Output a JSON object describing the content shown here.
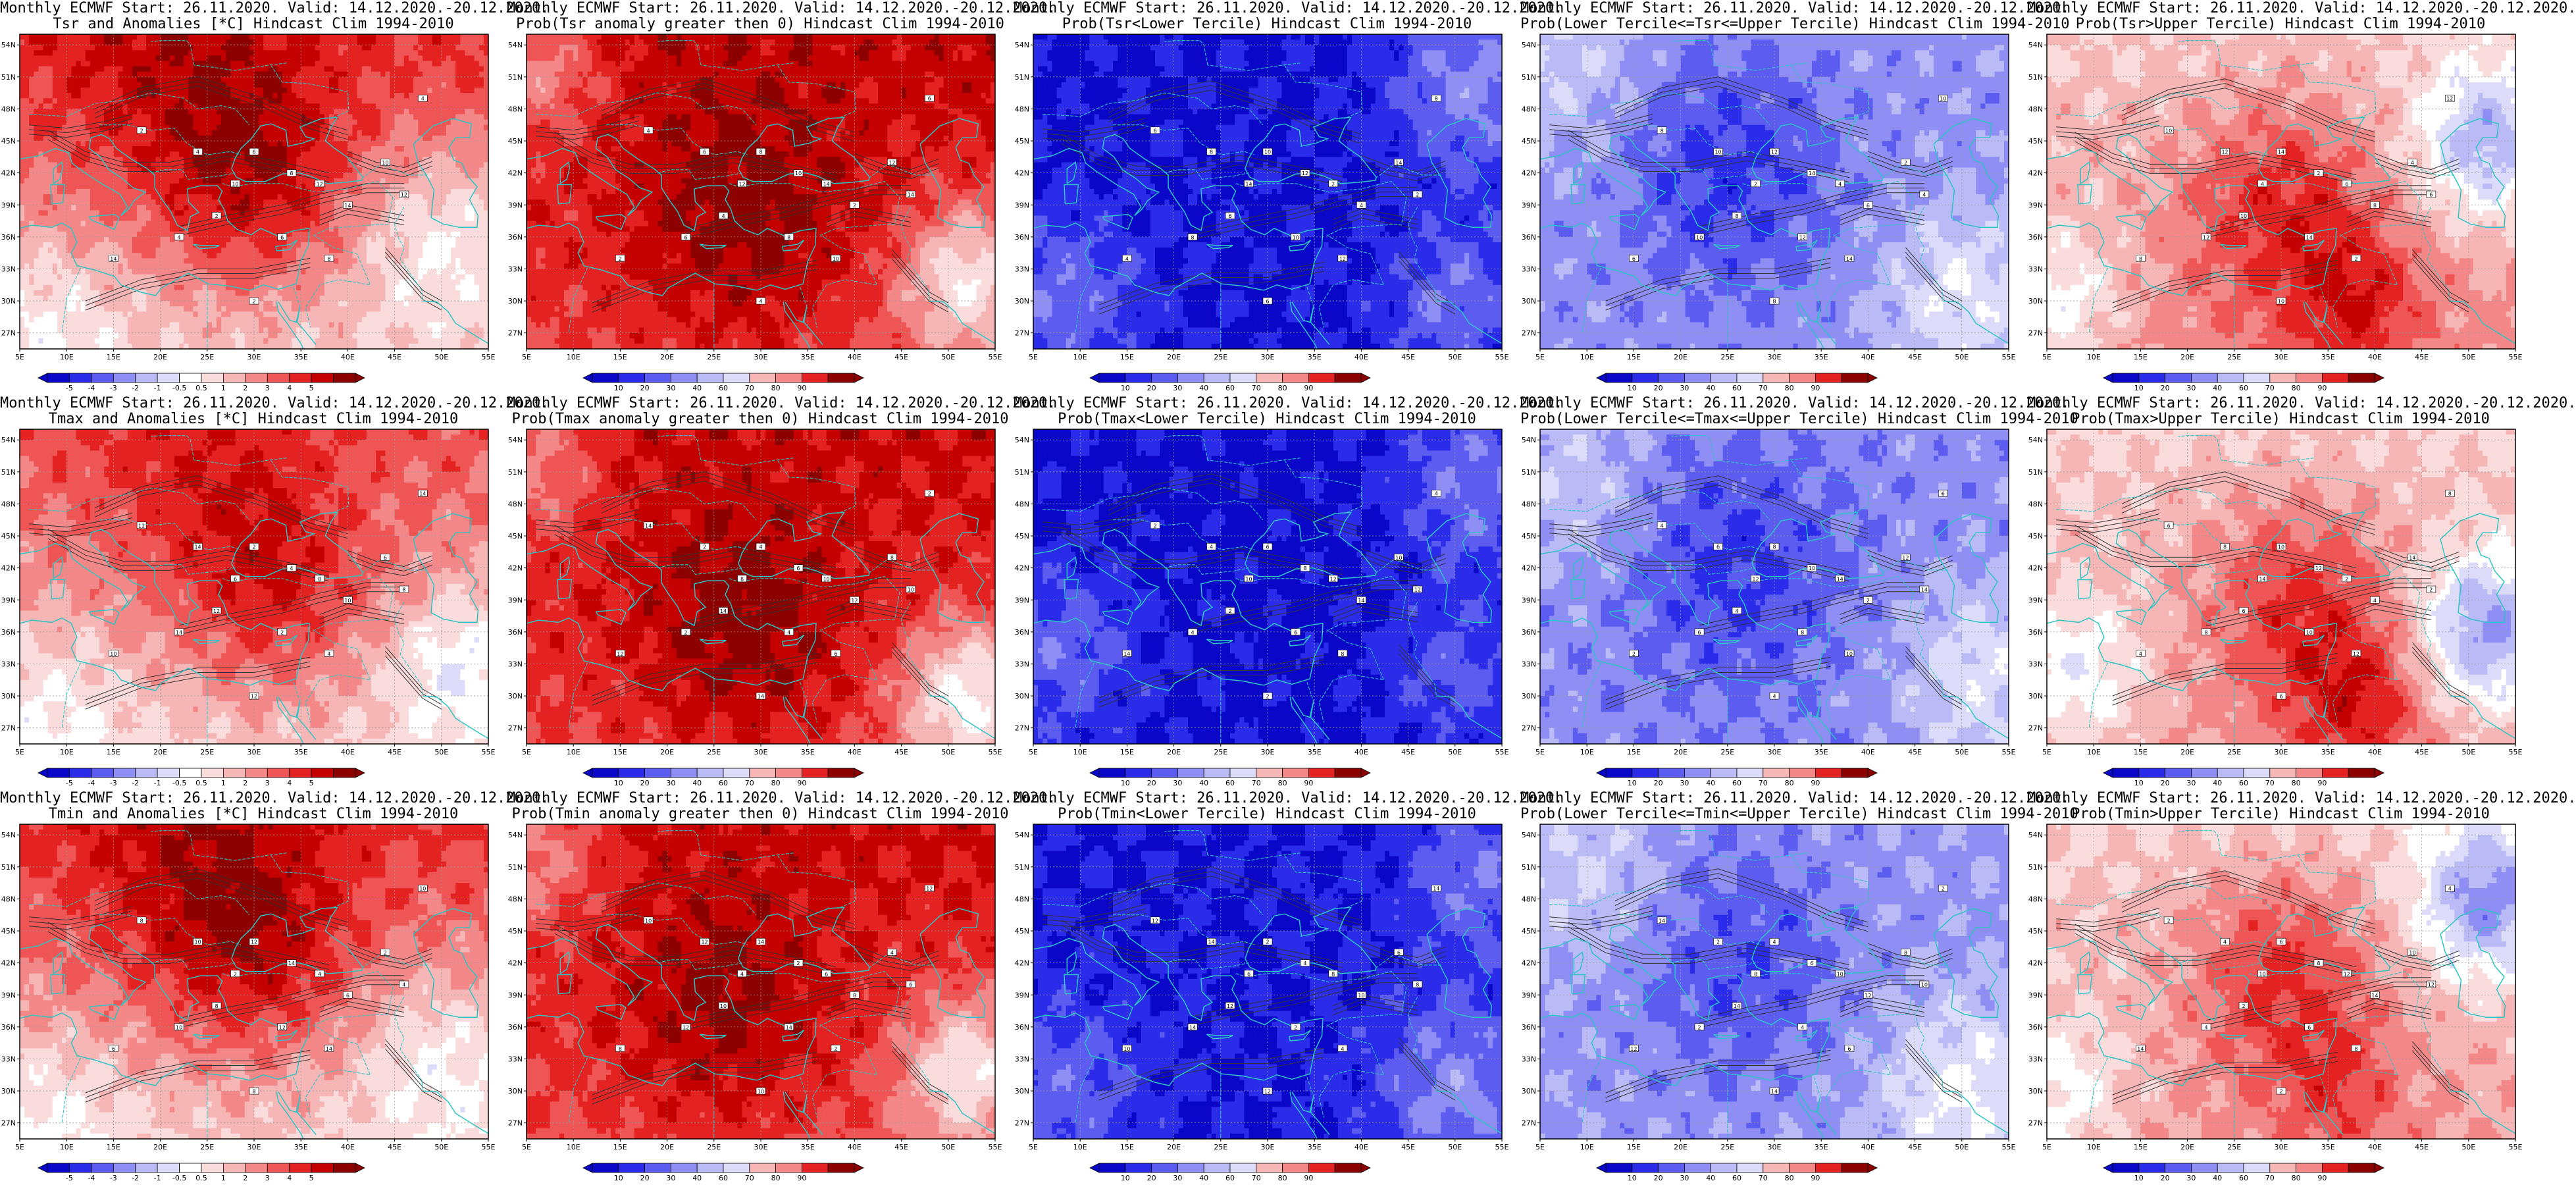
{
  "figure": {
    "run_info": "Monthly ECMWF Start: 26.11.2020. Valid: 14.12.2020.-20.12.2020.",
    "lat_labels": [
      "54N",
      "51N",
      "48N",
      "45N",
      "42N",
      "39N",
      "36N",
      "33N",
      "30N",
      "27N"
    ],
    "lon_labels": [
      "5E",
      "10E",
      "15E",
      "20E",
      "25E",
      "30E",
      "35E",
      "40E",
      "45E",
      "50E",
      "55E"
    ],
    "anomaly_ticks": [
      "-5",
      "-4",
      "-3",
      "-2",
      "-1",
      "-0.5",
      "0.5",
      "1",
      "2",
      "3",
      "4",
      "5"
    ],
    "prob_ticks": [
      "10",
      "20",
      "30",
      "40",
      "60",
      "70",
      "80",
      "90"
    ]
  },
  "colors": {
    "diverging_scale": [
      "#0b07c9",
      "#2b2bea",
      "#5c5cf0",
      "#8e8ef4",
      "#babaf7",
      "#dcdcfa",
      "#ffffff",
      "#fadcdc",
      "#f7b6b6",
      "#f48888",
      "#ef5555",
      "#e52222",
      "#c40000",
      "#8c0000"
    ],
    "coastline": "#2cc4c4",
    "contour": "#333333",
    "frame": "#000000",
    "gridline": "#9a9a9a"
  },
  "panels": [
    {
      "id": "tsr-anom",
      "row": 0,
      "col": 0,
      "line1": "Monthly ECMWF Start: 26.11.2020. Valid: 14.12.2020.-20.12.2020.",
      "line2": "Tsr and Anomalies [*C] Hindcast Clim 1994-2010",
      "scale": "anomaly",
      "field": {
        "base": 0.69,
        "lat_gradient": 0.12,
        "centers": [
          {
            "lon": 30,
            "lat": 41,
            "amp": 0.18,
            "sigma": 7
          },
          {
            "lon": 22,
            "lat": 50,
            "amp": 0.12,
            "sigma": 9
          },
          {
            "lon": 50,
            "lat": 36,
            "amp": -0.16,
            "sigma": 6
          },
          {
            "lon": 8,
            "lat": 28,
            "amp": -0.1,
            "sigma": 6
          }
        ]
      }
    },
    {
      "id": "tsr-prob-gt0",
      "row": 0,
      "col": 1,
      "line1": "Monthly ECMWF Start: 26.11.2020. Valid: 14.12.2020.-20.12.2020.",
      "line2": "Prob(Tsr anomaly greater then 0) Hindcast Clim 1994-2010",
      "scale": "prob",
      "field": {
        "base": 0.84,
        "lat_gradient": 0.06,
        "centers": [
          {
            "lon": 28,
            "lat": 37,
            "amp": 0.14,
            "sigma": 8
          },
          {
            "lon": 52,
            "lat": 32,
            "amp": -0.3,
            "sigma": 5
          },
          {
            "lon": 6,
            "lat": 52,
            "amp": -0.2,
            "sigma": 5
          }
        ]
      }
    },
    {
      "id": "tsr-prob-lower",
      "row": 0,
      "col": 2,
      "line1": "Monthly ECMWF Start: 26.11.2020. Valid: 14.12.2020.-20.12.2020.",
      "line2": "Prob(Tsr<Lower Tercile) Hindcast Clim 1994-2010",
      "scale": "prob",
      "field": {
        "base": 0.06,
        "lat_gradient": 0.0,
        "centers": [
          {
            "lon": 52,
            "lat": 50,
            "amp": 0.18,
            "sigma": 6
          },
          {
            "lon": 8,
            "lat": 30,
            "amp": 0.14,
            "sigma": 6
          },
          {
            "lon": 50,
            "lat": 30,
            "amp": 0.15,
            "sigma": 5
          }
        ]
      }
    },
    {
      "id": "tsr-prob-middle",
      "row": 0,
      "col": 3,
      "line1": "Monthly ECMWF Start: 26.11.2020. Valid: 14.12.2020.-20.12.2020.",
      "line2": "Prob(Lower Tercile<=Tsr<=Upper Tercile) Hindcast Clim 1994-2010",
      "scale": "prob",
      "field": {
        "base": 0.26,
        "lat_gradient": 0.0,
        "centers": [
          {
            "lon": 25,
            "lat": 42,
            "amp": -0.14,
            "sigma": 8
          },
          {
            "lon": 50,
            "lat": 30,
            "amp": 0.16,
            "sigma": 6
          },
          {
            "lon": 8,
            "lat": 52,
            "amp": 0.1,
            "sigma": 6
          }
        ]
      }
    },
    {
      "id": "tsr-prob-upper",
      "row": 0,
      "col": 4,
      "line1": "Monthly ECMWF Start: 26.11.2020. Valid: 14.12.2020.-20.12.2020.",
      "line2": "Prob(Tsr>Upper Tercile) Hindcast Clim 1994-2010",
      "scale": "prob",
      "field": {
        "base": 0.62,
        "lat_gradient": -0.05,
        "centers": [
          {
            "lon": 30,
            "lat": 39,
            "amp": 0.2,
            "sigma": 7
          },
          {
            "lon": 38,
            "lat": 30,
            "amp": 0.18,
            "sigma": 5
          },
          {
            "lon": 52,
            "lat": 45,
            "amp": -0.3,
            "sigma": 5
          },
          {
            "lon": 6,
            "lat": 30,
            "amp": -0.18,
            "sigma": 5
          }
        ]
      }
    },
    {
      "id": "tmax-anom",
      "row": 1,
      "col": 0,
      "line1": "Monthly ECMWF Start: 26.11.2020. Valid: 14.12.2020.-20.12.2020.",
      "line2": "Tmax and Anomalies [*C] Hindcast Clim 1994-2010",
      "scale": "anomaly",
      "field": {
        "base": 0.66,
        "lat_gradient": 0.1,
        "centers": [
          {
            "lon": 32,
            "lat": 40,
            "amp": 0.18,
            "sigma": 7
          },
          {
            "lon": 24,
            "lat": 50,
            "amp": 0.1,
            "sigma": 8
          },
          {
            "lon": 52,
            "lat": 33,
            "amp": -0.18,
            "sigma": 5
          },
          {
            "lon": 8,
            "lat": 28,
            "amp": -0.1,
            "sigma": 6
          }
        ]
      }
    },
    {
      "id": "tmax-prob-gt0",
      "row": 1,
      "col": 1,
      "line1": "Monthly ECMWF Start: 26.11.2020. Valid: 14.12.2020.-20.12.2020.",
      "line2": "Prob(Tmax anomaly greater then 0) Hindcast Clim 1994-2010",
      "scale": "prob",
      "field": {
        "base": 0.83,
        "lat_gradient": 0.05,
        "centers": [
          {
            "lon": 28,
            "lat": 36,
            "amp": 0.15,
            "sigma": 8
          },
          {
            "lon": 52,
            "lat": 30,
            "amp": -0.32,
            "sigma": 5
          },
          {
            "lon": 6,
            "lat": 52,
            "amp": -0.18,
            "sigma": 5
          }
        ]
      }
    },
    {
      "id": "tmax-prob-lower",
      "row": 1,
      "col": 2,
      "line1": "Monthly ECMWF Start: 26.11.2020. Valid: 14.12.2020.-20.12.2020.",
      "line2": "Prob(Tmax<Lower Tercile) Hindcast Clim 1994-2010",
      "scale": "prob",
      "field": {
        "base": 0.05,
        "lat_gradient": 0.0,
        "centers": [
          {
            "lon": 52,
            "lat": 50,
            "amp": 0.16,
            "sigma": 6
          },
          {
            "lon": 8,
            "lat": 34,
            "amp": 0.14,
            "sigma": 6
          },
          {
            "lon": 50,
            "lat": 32,
            "amp": 0.12,
            "sigma": 5
          }
        ]
      }
    },
    {
      "id": "tmax-prob-middle",
      "row": 1,
      "col": 3,
      "line1": "Monthly ECMWF Start: 26.11.2020. Valid: 14.12.2020.-20.12.2020.",
      "line2": "Prob(Lower Tercile<=Tmax<=Upper Tercile) Hindcast Clim 1994-2010",
      "scale": "prob",
      "field": {
        "base": 0.25,
        "lat_gradient": 0.0,
        "centers": [
          {
            "lon": 26,
            "lat": 42,
            "amp": -0.13,
            "sigma": 8
          },
          {
            "lon": 52,
            "lat": 32,
            "amp": 0.16,
            "sigma": 6
          },
          {
            "lon": 8,
            "lat": 50,
            "amp": 0.1,
            "sigma": 6
          }
        ]
      }
    },
    {
      "id": "tmax-prob-upper",
      "row": 1,
      "col": 4,
      "line1": "Monthly ECMWF Start: 26.11.2020. Valid: 14.12.2020.-20.12.2020.",
      "line2": "Prob(Tmax>Upper Tercile) Hindcast Clim 1994-2010",
      "scale": "prob",
      "field": {
        "base": 0.6,
        "lat_gradient": -0.04,
        "centers": [
          {
            "lon": 32,
            "lat": 39,
            "amp": 0.2,
            "sigma": 7
          },
          {
            "lon": 38,
            "lat": 29,
            "amp": 0.2,
            "sigma": 5
          },
          {
            "lon": 52,
            "lat": 36,
            "amp": -0.35,
            "sigma": 5
          },
          {
            "lon": 8,
            "lat": 32,
            "amp": -0.18,
            "sigma": 5
          }
        ]
      }
    },
    {
      "id": "tmin-anom",
      "row": 2,
      "col": 0,
      "line1": "Monthly ECMWF Start: 26.11.2020. Valid: 14.12.2020.-20.12.2020.",
      "line2": "Tmin and Anomalies [*C] Hindcast Clim 1994-2010",
      "scale": "anomaly",
      "field": {
        "base": 0.68,
        "lat_gradient": 0.12,
        "centers": [
          {
            "lon": 30,
            "lat": 43,
            "amp": 0.16,
            "sigma": 7
          },
          {
            "lon": 24,
            "lat": 50,
            "amp": 0.12,
            "sigma": 9
          },
          {
            "lon": 50,
            "lat": 33,
            "amp": -0.14,
            "sigma": 6
          },
          {
            "lon": 8,
            "lat": 28,
            "amp": -0.1,
            "sigma": 6
          }
        ]
      }
    },
    {
      "id": "tmin-prob-gt0",
      "row": 2,
      "col": 1,
      "line1": "Monthly ECMWF Start: 26.11.2020. Valid: 14.12.2020.-20.12.2020.",
      "line2": "Prob(Tmin anomaly greater then 0) Hindcast Clim 1994-2010",
      "scale": "prob",
      "field": {
        "base": 0.82,
        "lat_gradient": 0.06,
        "centers": [
          {
            "lon": 26,
            "lat": 37,
            "amp": 0.14,
            "sigma": 8
          },
          {
            "lon": 52,
            "lat": 32,
            "amp": -0.28,
            "sigma": 5
          },
          {
            "lon": 6,
            "lat": 52,
            "amp": -0.18,
            "sigma": 5
          }
        ]
      }
    },
    {
      "id": "tmin-prob-lower",
      "row": 2,
      "col": 2,
      "line1": "Monthly ECMWF Start: 26.11.2020. Valid: 14.12.2020.-20.12.2020.",
      "line2": "Prob(Tmin<Lower Tercile) Hindcast Clim 1994-2010",
      "scale": "prob",
      "field": {
        "base": 0.07,
        "lat_gradient": 0.0,
        "centers": [
          {
            "lon": 50,
            "lat": 30,
            "amp": 0.18,
            "sigma": 6
          },
          {
            "lon": 8,
            "lat": 30,
            "amp": 0.12,
            "sigma": 6
          },
          {
            "lon": 52,
            "lat": 50,
            "amp": 0.14,
            "sigma": 5
          }
        ]
      }
    },
    {
      "id": "tmin-prob-middle",
      "row": 2,
      "col": 3,
      "line1": "Monthly ECMWF Start: 26.11.2020. Valid: 14.12.2020.-20.12.2020.",
      "line2": "Prob(Lower Tercile<=Tmin<=Upper Tercile) Hindcast Clim 1994-2010",
      "scale": "prob",
      "field": {
        "base": 0.27,
        "lat_gradient": 0.0,
        "centers": [
          {
            "lon": 26,
            "lat": 42,
            "amp": -0.12,
            "sigma": 8
          },
          {
            "lon": 50,
            "lat": 30,
            "amp": 0.18,
            "sigma": 6
          },
          {
            "lon": 10,
            "lat": 50,
            "amp": 0.1,
            "sigma": 6
          }
        ]
      }
    },
    {
      "id": "tmin-prob-upper",
      "row": 2,
      "col": 4,
      "line1": "Monthly ECMWF Start: 26.11.2020. Valid: 14.12.2020.-20.12.2020.",
      "line2": "Prob(Tmin>Upper Tercile) Hindcast Clim 1994-2010",
      "scale": "prob",
      "field": {
        "base": 0.6,
        "lat_gradient": -0.04,
        "centers": [
          {
            "lon": 30,
            "lat": 41,
            "amp": 0.2,
            "sigma": 7
          },
          {
            "lon": 36,
            "lat": 30,
            "amp": 0.14,
            "sigma": 5
          },
          {
            "lon": 52,
            "lat": 48,
            "amp": -0.34,
            "sigma": 5
          },
          {
            "lon": 6,
            "lat": 30,
            "amp": -0.16,
            "sigma": 5
          }
        ]
      }
    }
  ]
}
